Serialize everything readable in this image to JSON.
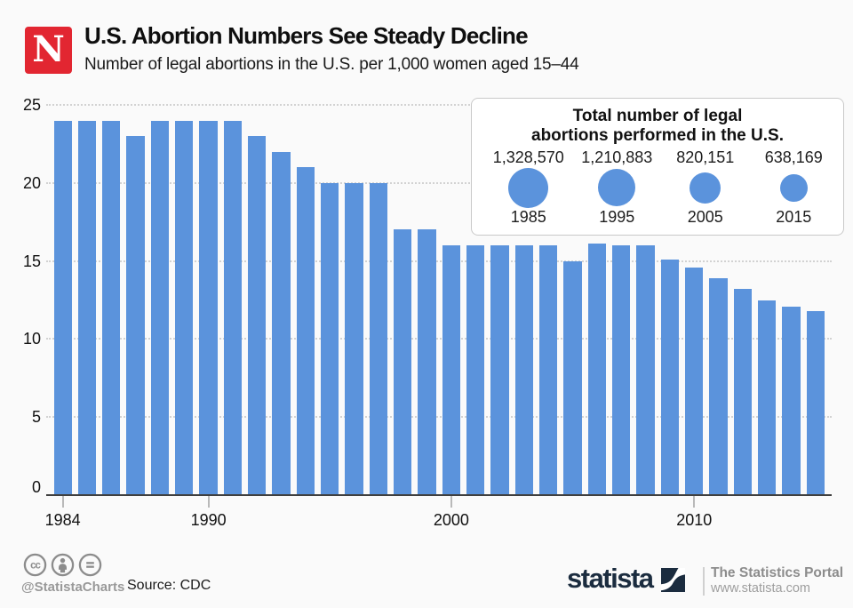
{
  "header": {
    "logo_letter": "N",
    "title": "U.S. Abortion Numbers See Steady Decline",
    "subtitle": "Number of legal abortions in the U.S. per 1,000 women aged 15–44"
  },
  "chart_data": {
    "type": "bar",
    "title": "U.S. Abortion Numbers See Steady Decline",
    "subtitle": "Number of legal abortions in the U.S. per 1,000 women aged 15–44",
    "x": [
      1984,
      1985,
      1986,
      1987,
      1988,
      1989,
      1990,
      1991,
      1992,
      1993,
      1994,
      1995,
      1996,
      1997,
      1998,
      1999,
      2000,
      2001,
      2002,
      2003,
      2004,
      2005,
      2006,
      2007,
      2008,
      2009,
      2010,
      2011,
      2012,
      2013,
      2014,
      2015
    ],
    "values": [
      24,
      24,
      24,
      23,
      24,
      24,
      24,
      24,
      23,
      22,
      21,
      20,
      20,
      20,
      17,
      17,
      16,
      16,
      16,
      16,
      16,
      15,
      16.1,
      16,
      16,
      15.1,
      14.6,
      13.9,
      13.2,
      12.5,
      12.1,
      11.8
    ],
    "xlabel": "",
    "ylabel": "",
    "ylim": [
      0,
      25
    ],
    "yticks": [
      0,
      5,
      10,
      15,
      20,
      25
    ],
    "xticks": [
      1984,
      1990,
      2000,
      2010
    ],
    "grid": "dotted-horizontal",
    "legend": "none"
  },
  "inset": {
    "title_line1": "Total number of legal",
    "title_line2": "abortions performed in the U.S.",
    "items": [
      {
        "value": "1,328,570",
        "year": "1985",
        "diameter": 45
      },
      {
        "value": "1,210,883",
        "year": "1995",
        "diameter": 42
      },
      {
        "value": "820,151",
        "year": "2005",
        "diameter": 35
      },
      {
        "value": "638,169",
        "year": "2015",
        "diameter": 31
      }
    ]
  },
  "footer": {
    "cc_icons": [
      "cc-icon",
      "attribution-person-icon",
      "equals-icon"
    ],
    "handle": "@StatistaCharts",
    "source": "Source: CDC",
    "brand": "statista",
    "tagline": "The Statistics Portal",
    "website": "www.statista.com"
  },
  "colors": {
    "background": "#fafafa",
    "bar_blue": "#5b93dc",
    "brand_red": "#e22631",
    "brand_navy": "#1b2c3f",
    "grid_gray": "#d2d2d2"
  }
}
